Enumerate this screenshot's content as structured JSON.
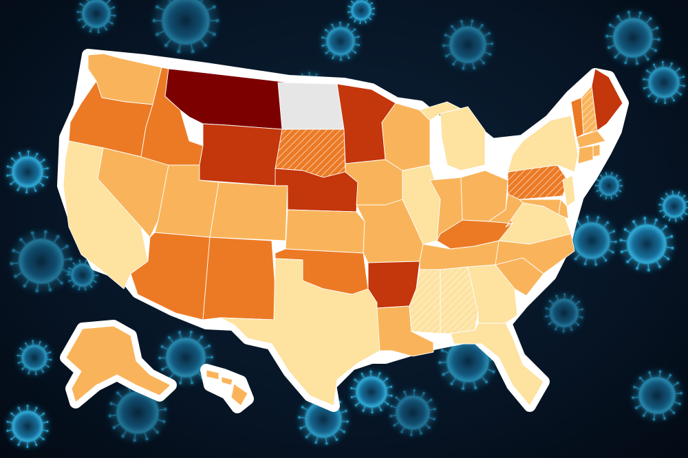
{
  "colors": {
    "background": "#06121f",
    "virus_glow": "#2fb6e6",
    "virus_core": "#0c3550",
    "outline": "#ffffff",
    "no_data": "#e6e6e6",
    "level_1": "#fde2a0",
    "level_2": "#f9b45b",
    "level_3": "#ec7a25",
    "level_4": "#c4360b",
    "level_5": "#7d0000"
  },
  "map": {
    "subject": "United States",
    "states": [
      {
        "abbr": "WA",
        "level": 2
      },
      {
        "abbr": "OR",
        "level": 3
      },
      {
        "abbr": "CA",
        "level": 1
      },
      {
        "abbr": "NV",
        "level": 2
      },
      {
        "abbr": "ID",
        "level": 3
      },
      {
        "abbr": "MT",
        "level": 5
      },
      {
        "abbr": "WY",
        "level": 4
      },
      {
        "abbr": "UT",
        "level": 2
      },
      {
        "abbr": "AZ",
        "level": 3
      },
      {
        "abbr": "CO",
        "level": 2
      },
      {
        "abbr": "NM",
        "level": 3
      },
      {
        "abbr": "ND",
        "level": 0
      },
      {
        "abbr": "SD",
        "level": 3,
        "hatched": true
      },
      {
        "abbr": "NE",
        "level": 4
      },
      {
        "abbr": "KS",
        "level": 2
      },
      {
        "abbr": "OK",
        "level": 3
      },
      {
        "abbr": "TX",
        "level": 1
      },
      {
        "abbr": "MN",
        "level": 4
      },
      {
        "abbr": "IA",
        "level": 2
      },
      {
        "abbr": "MO",
        "level": 2
      },
      {
        "abbr": "AR",
        "level": 4
      },
      {
        "abbr": "LA",
        "level": 2
      },
      {
        "abbr": "WI",
        "level": 2
      },
      {
        "abbr": "IL",
        "level": 1
      },
      {
        "abbr": "MI",
        "level": 1
      },
      {
        "abbr": "IN",
        "level": 2
      },
      {
        "abbr": "OH",
        "level": 2
      },
      {
        "abbr": "KY",
        "level": 3
      },
      {
        "abbr": "TN",
        "level": 2
      },
      {
        "abbr": "MS",
        "level": 1,
        "hatched": true
      },
      {
        "abbr": "AL",
        "level": 1,
        "hatched": true
      },
      {
        "abbr": "GA",
        "level": 1
      },
      {
        "abbr": "FL",
        "level": 1
      },
      {
        "abbr": "SC",
        "level": 2
      },
      {
        "abbr": "NC",
        "level": 2
      },
      {
        "abbr": "VA",
        "level": 1
      },
      {
        "abbr": "WV",
        "level": 2
      },
      {
        "abbr": "PA",
        "level": 3,
        "hatched": true
      },
      {
        "abbr": "NY",
        "level": 1
      },
      {
        "abbr": "VT",
        "level": 3
      },
      {
        "abbr": "NH",
        "level": 2,
        "hatched": true
      },
      {
        "abbr": "ME",
        "level": 4
      },
      {
        "abbr": "MA",
        "level": 2
      },
      {
        "abbr": "CT",
        "level": 2
      },
      {
        "abbr": "RI",
        "level": 2
      },
      {
        "abbr": "NJ",
        "level": 1
      },
      {
        "abbr": "DE",
        "level": 2
      },
      {
        "abbr": "MD",
        "level": 2
      },
      {
        "abbr": "AK",
        "level": 2
      },
      {
        "abbr": "HI",
        "level": 2
      }
    ]
  },
  "background": {
    "motif": "virus-particles"
  }
}
